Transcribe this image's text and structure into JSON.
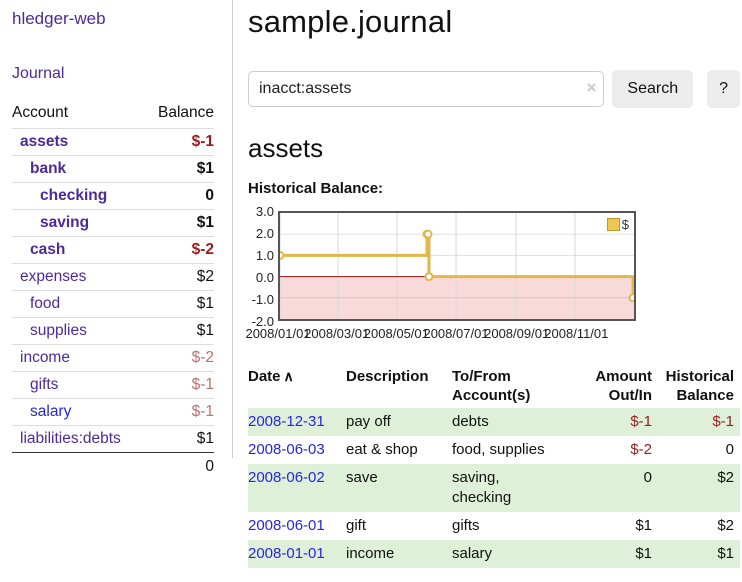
{
  "sidebar": {
    "brand": "hledger-web",
    "nav_journal": "Journal",
    "accounts_header": {
      "account": "Account",
      "balance": "Balance"
    },
    "accounts": [
      {
        "name": "assets",
        "balance": "$-1",
        "indent": 0,
        "bold": true,
        "color": "purple"
      },
      {
        "name": "bank",
        "balance": "$1",
        "indent": 1,
        "bold": true,
        "color": "purple"
      },
      {
        "name": "checking",
        "balance": "0",
        "indent": 2,
        "bold": true,
        "color": "purple"
      },
      {
        "name": "saving",
        "balance": "$1",
        "indent": 2,
        "bold": true,
        "color": "purple"
      },
      {
        "name": "cash",
        "balance": "$-2",
        "indent": 1,
        "bold": true,
        "color": "purple"
      },
      {
        "name": "expenses",
        "balance": "$2",
        "indent": 0,
        "bold": false,
        "color": "purple"
      },
      {
        "name": "food",
        "balance": "$1",
        "indent": 1,
        "bold": false,
        "color": "purple"
      },
      {
        "name": "supplies",
        "balance": "$1",
        "indent": 1,
        "bold": false,
        "color": "purple"
      },
      {
        "name": "income",
        "balance": "$-2",
        "indent": 0,
        "bold": false,
        "color": "purple"
      },
      {
        "name": "gifts",
        "balance": "$-1",
        "indent": 1,
        "bold": false,
        "color": "purple"
      },
      {
        "name": "salary",
        "balance": "$-1",
        "indent": 1,
        "bold": false,
        "color": "blue"
      },
      {
        "name": "liabilities:debts",
        "balance": "$1",
        "indent": 0,
        "bold": false,
        "color": "purple"
      }
    ],
    "total": "0"
  },
  "header": {
    "title": "sample.journal"
  },
  "search": {
    "value": "inacct:assets",
    "clear_icon": "×",
    "button_label": "Search",
    "help_label": "?"
  },
  "account_page": {
    "heading": "assets",
    "chart_label": "Historical Balance:"
  },
  "chart_data": {
    "type": "line",
    "step": true,
    "title": "Historical Balance:",
    "series": [
      {
        "name": "$",
        "x": [
          "2008-01-01",
          "2008-06-01",
          "2008-06-02",
          "2008-06-03",
          "2008-12-31"
        ],
        "y": [
          1.0,
          2.0,
          2.0,
          0.0,
          -1.0
        ]
      }
    ],
    "x_ticks": [
      "2008/01/01",
      "2008/03/01",
      "2008/05/01",
      "2008/07/01",
      "2008/09/01",
      "2008/11/01"
    ],
    "y_ticks": [
      3.0,
      2.0,
      1.0,
      0.0,
      -1.0,
      -2.0
    ],
    "xlim": [
      "2008-01-01",
      "2009-01-01"
    ],
    "ylim": [
      -2,
      3
    ],
    "grid": true,
    "negative_region_shaded": true,
    "legend": {
      "label": "$",
      "position": "top-right"
    },
    "colors": {
      "line": "#e3b64a",
      "marker_fill": "#ffffff",
      "negative_fill": "#f9dada",
      "zero_line": "#991111",
      "border": "#555555"
    }
  },
  "table": {
    "headers": {
      "date": "Date",
      "sort_icon": "∧",
      "description": "Description",
      "accounts": "To/From Account(s)",
      "amount": "Amount Out/In",
      "balance": "Historical Balance"
    },
    "rows": [
      {
        "date": "2008-12-31",
        "description": "pay off",
        "accounts": "debts",
        "amount": "$-1",
        "balance": "$-1"
      },
      {
        "date": "2008-06-03",
        "description": "eat & shop",
        "accounts": "food, supplies",
        "amount": "$-2",
        "balance": "0"
      },
      {
        "date": "2008-06-02",
        "description": "save",
        "accounts": "saving, checking",
        "amount": "0",
        "balance": "$2"
      },
      {
        "date": "2008-06-01",
        "description": "gift",
        "accounts": "gifts",
        "amount": "$1",
        "balance": "$2"
      },
      {
        "date": "2008-01-01",
        "description": "income",
        "accounts": "salary",
        "amount": "$1",
        "balance": "$1"
      }
    ]
  },
  "colors": {
    "link_purple": "#4c2a99",
    "link_blue": "#2525e8",
    "negative_bold": "#9c1b1b",
    "negative_muted": "#bf6e6e",
    "row_stripe_green": "#dff0d8",
    "button_gray": "#ececec"
  }
}
